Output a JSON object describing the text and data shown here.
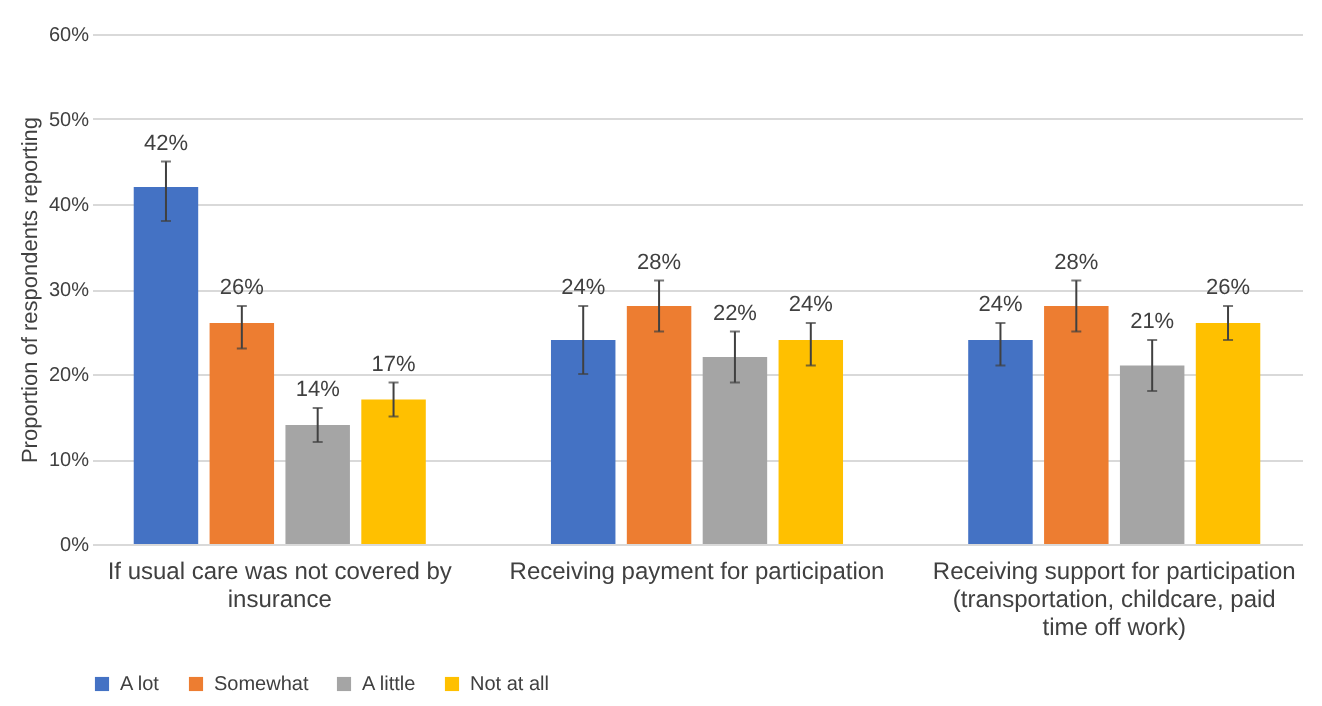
{
  "chart_data": {
    "type": "bar",
    "ylabel": "Proportion of respondents reporting",
    "categories": [
      "If usual care was not covered by insurance",
      "Receiving payment for participation",
      "Receiving support for participation (transportation, childcare, paid time off work)"
    ],
    "series": [
      {
        "name": "A lot",
        "color": "#4472c4",
        "values": [
          42,
          24,
          24
        ],
        "errors": [
          [
            38,
            45
          ],
          [
            20,
            28
          ],
          [
            21,
            26
          ]
        ]
      },
      {
        "name": "Somewhat",
        "color": "#ed7d31",
        "values": [
          26,
          28,
          28
        ],
        "errors": [
          [
            23,
            28
          ],
          [
            25,
            31
          ],
          [
            25,
            31
          ]
        ]
      },
      {
        "name": "A little",
        "color": "#a5a5a5",
        "values": [
          14,
          22,
          21
        ],
        "errors": [
          [
            12,
            16
          ],
          [
            19,
            25
          ],
          [
            18,
            24
          ]
        ]
      },
      {
        "name": "Not at all",
        "color": "#ffc000",
        "values": [
          17,
          24,
          26
        ],
        "errors": [
          [
            15,
            19
          ],
          [
            21,
            26
          ],
          [
            24,
            28
          ]
        ]
      }
    ],
    "ylim": [
      0,
      60
    ],
    "yticks": [
      {
        "value": 0,
        "label": "0%"
      },
      {
        "value": 10,
        "label": "10%"
      },
      {
        "value": 20,
        "label": "20%"
      },
      {
        "value": 30,
        "label": "30%"
      },
      {
        "value": 40,
        "label": "40%"
      },
      {
        "value": 50,
        "label": "50%"
      },
      {
        "value": 60,
        "label": "60%"
      }
    ],
    "value_labels": [
      [
        "42%",
        "24%",
        "24%"
      ],
      [
        "26%",
        "28%",
        "28%"
      ],
      [
        "14%",
        "22%",
        "21%"
      ],
      [
        "17%",
        "24%",
        "26%"
      ]
    ],
    "grid": "y",
    "legend": "bottom"
  }
}
